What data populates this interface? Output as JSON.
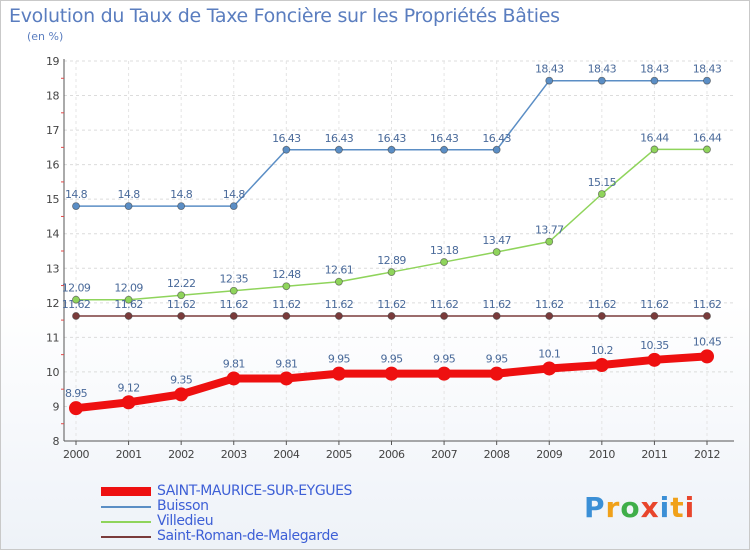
{
  "header": {
    "title": "Evolution du Taux de Taxe Foncière sur les Propriétés Bâties",
    "subtitle": "(en %)"
  },
  "logo": {
    "text": "Proxiti",
    "colors": [
      "#3b8fd6",
      "#f0a11a",
      "#3fae49",
      "#e8452c",
      "#3b8fd6",
      "#f0a11a",
      "#e8452c"
    ]
  },
  "chart_data": {
    "type": "line",
    "x": [
      2000,
      2001,
      2002,
      2003,
      2004,
      2005,
      2006,
      2007,
      2008,
      2009,
      2010,
      2011,
      2012
    ],
    "ylim": [
      8,
      19
    ],
    "yticks": [
      8,
      9,
      10,
      11,
      12,
      13,
      14,
      15,
      16,
      17,
      18,
      19
    ],
    "grid": true,
    "legend_position": "bottom-left",
    "series": [
      {
        "name": "Buisson",
        "color": "#5b8ec5",
        "labelColor": "#4a6a9a",
        "values": [
          14.8,
          14.8,
          14.8,
          14.8,
          16.43,
          16.43,
          16.43,
          16.43,
          16.43,
          18.43,
          18.43,
          18.43,
          18.43
        ],
        "labels": [
          "14.8",
          "14.8",
          "14.8",
          "14.8",
          "16.43",
          "16.43",
          "16.43",
          "16.43",
          "16.43",
          "18.43",
          "18.43",
          "18.43",
          "18.43"
        ]
      },
      {
        "name": "Villedieu",
        "color": "#8fd45b",
        "labelColor": "#4a6a9a",
        "values": [
          12.09,
          12.09,
          12.22,
          12.35,
          12.48,
          12.61,
          12.89,
          13.18,
          13.47,
          13.77,
          15.15,
          16.44,
          16.44
        ],
        "labels": [
          "12.09",
          "12.09",
          "12.22",
          "12.35",
          "12.48",
          "12.61",
          "12.89",
          "13.18",
          "13.47",
          "13.77",
          "15.15",
          "16.44",
          "16.44"
        ]
      },
      {
        "name": "Saint-Roman-de-Malegarde",
        "color": "#7a3b3b",
        "labelColor": "#4a6a9a",
        "values": [
          11.62,
          11.62,
          11.62,
          11.62,
          11.62,
          11.62,
          11.62,
          11.62,
          11.62,
          11.62,
          11.62,
          11.62,
          11.62
        ],
        "labels": [
          "11.62",
          "11.62",
          "11.62",
          "11.62",
          "11.62",
          "11.62",
          "11.62",
          "11.62",
          "11.62",
          "11.62",
          "11.62",
          "11.62",
          "11.62"
        ]
      },
      {
        "name": "SAINT-MAURICE-SUR-EYGUES",
        "color": "#ee1010",
        "labelColor": "#4a6a9a",
        "bold": true,
        "values": [
          8.95,
          9.12,
          9.35,
          9.81,
          9.81,
          9.95,
          9.95,
          9.95,
          9.95,
          10.1,
          10.2,
          10.35,
          10.45
        ],
        "labels": [
          "8.95",
          "9.12",
          "9.35",
          "9.81",
          "9.81",
          "9.95",
          "9.95",
          "9.95",
          "9.95",
          "10.1",
          "10.2",
          "10.35",
          "10.45"
        ]
      }
    ]
  },
  "legend": {
    "items": [
      {
        "label": "SAINT-MAURICE-SUR-EYGUES",
        "color": "#ee1010",
        "textColor": "#3d5fd6"
      },
      {
        "label": "Buisson",
        "color": "#5b8ec5",
        "textColor": "#3d5fd6"
      },
      {
        "label": "Villedieu",
        "color": "#8fd45b",
        "textColor": "#3d5fd6"
      },
      {
        "label": "Saint-Roman-de-Malegarde",
        "color": "#7a3b3b",
        "textColor": "#3d5fd6"
      }
    ]
  }
}
